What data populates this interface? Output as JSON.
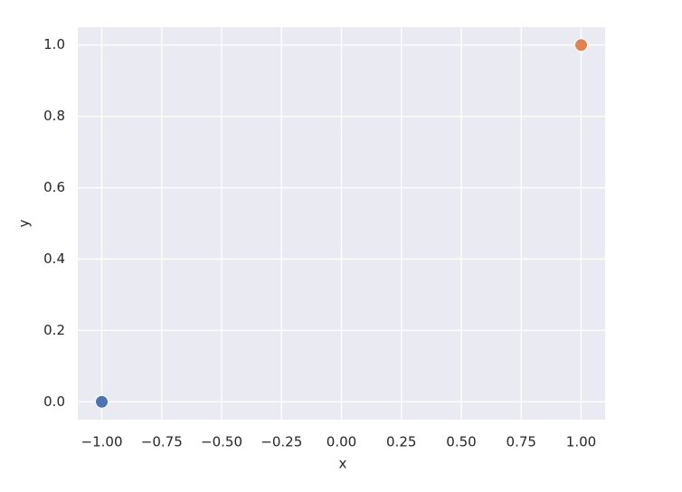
{
  "chart_data": {
    "type": "scatter",
    "xlabel": "x",
    "ylabel": "y",
    "x": [
      -1,
      1
    ],
    "values": [
      0,
      1
    ],
    "colors": [
      "#4c72b0",
      "#dd8452"
    ],
    "xlim": [
      -1.1,
      1.1
    ],
    "ylim": [
      -0.05,
      1.05
    ],
    "xticks": [
      {
        "value": -1,
        "label": "−1.00"
      },
      {
        "value": -0.75,
        "label": "−0.75"
      },
      {
        "value": -0.5,
        "label": "−0.50"
      },
      {
        "value": -0.25,
        "label": "−0.25"
      },
      {
        "value": 0,
        "label": "0.00"
      },
      0.25,
      {
        "value": 0.5,
        "label": "0.50"
      },
      0.75,
      {
        "value": 1,
        "label": "1.00"
      }
    ],
    "yticks": [
      {
        "value": 0,
        "label": "0.0"
      },
      0.2,
      0.4,
      0.6,
      0.8,
      {
        "value": 1,
        "label": "1.0"
      }
    ],
    "grid": true,
    "background": "#eaeaf2"
  }
}
